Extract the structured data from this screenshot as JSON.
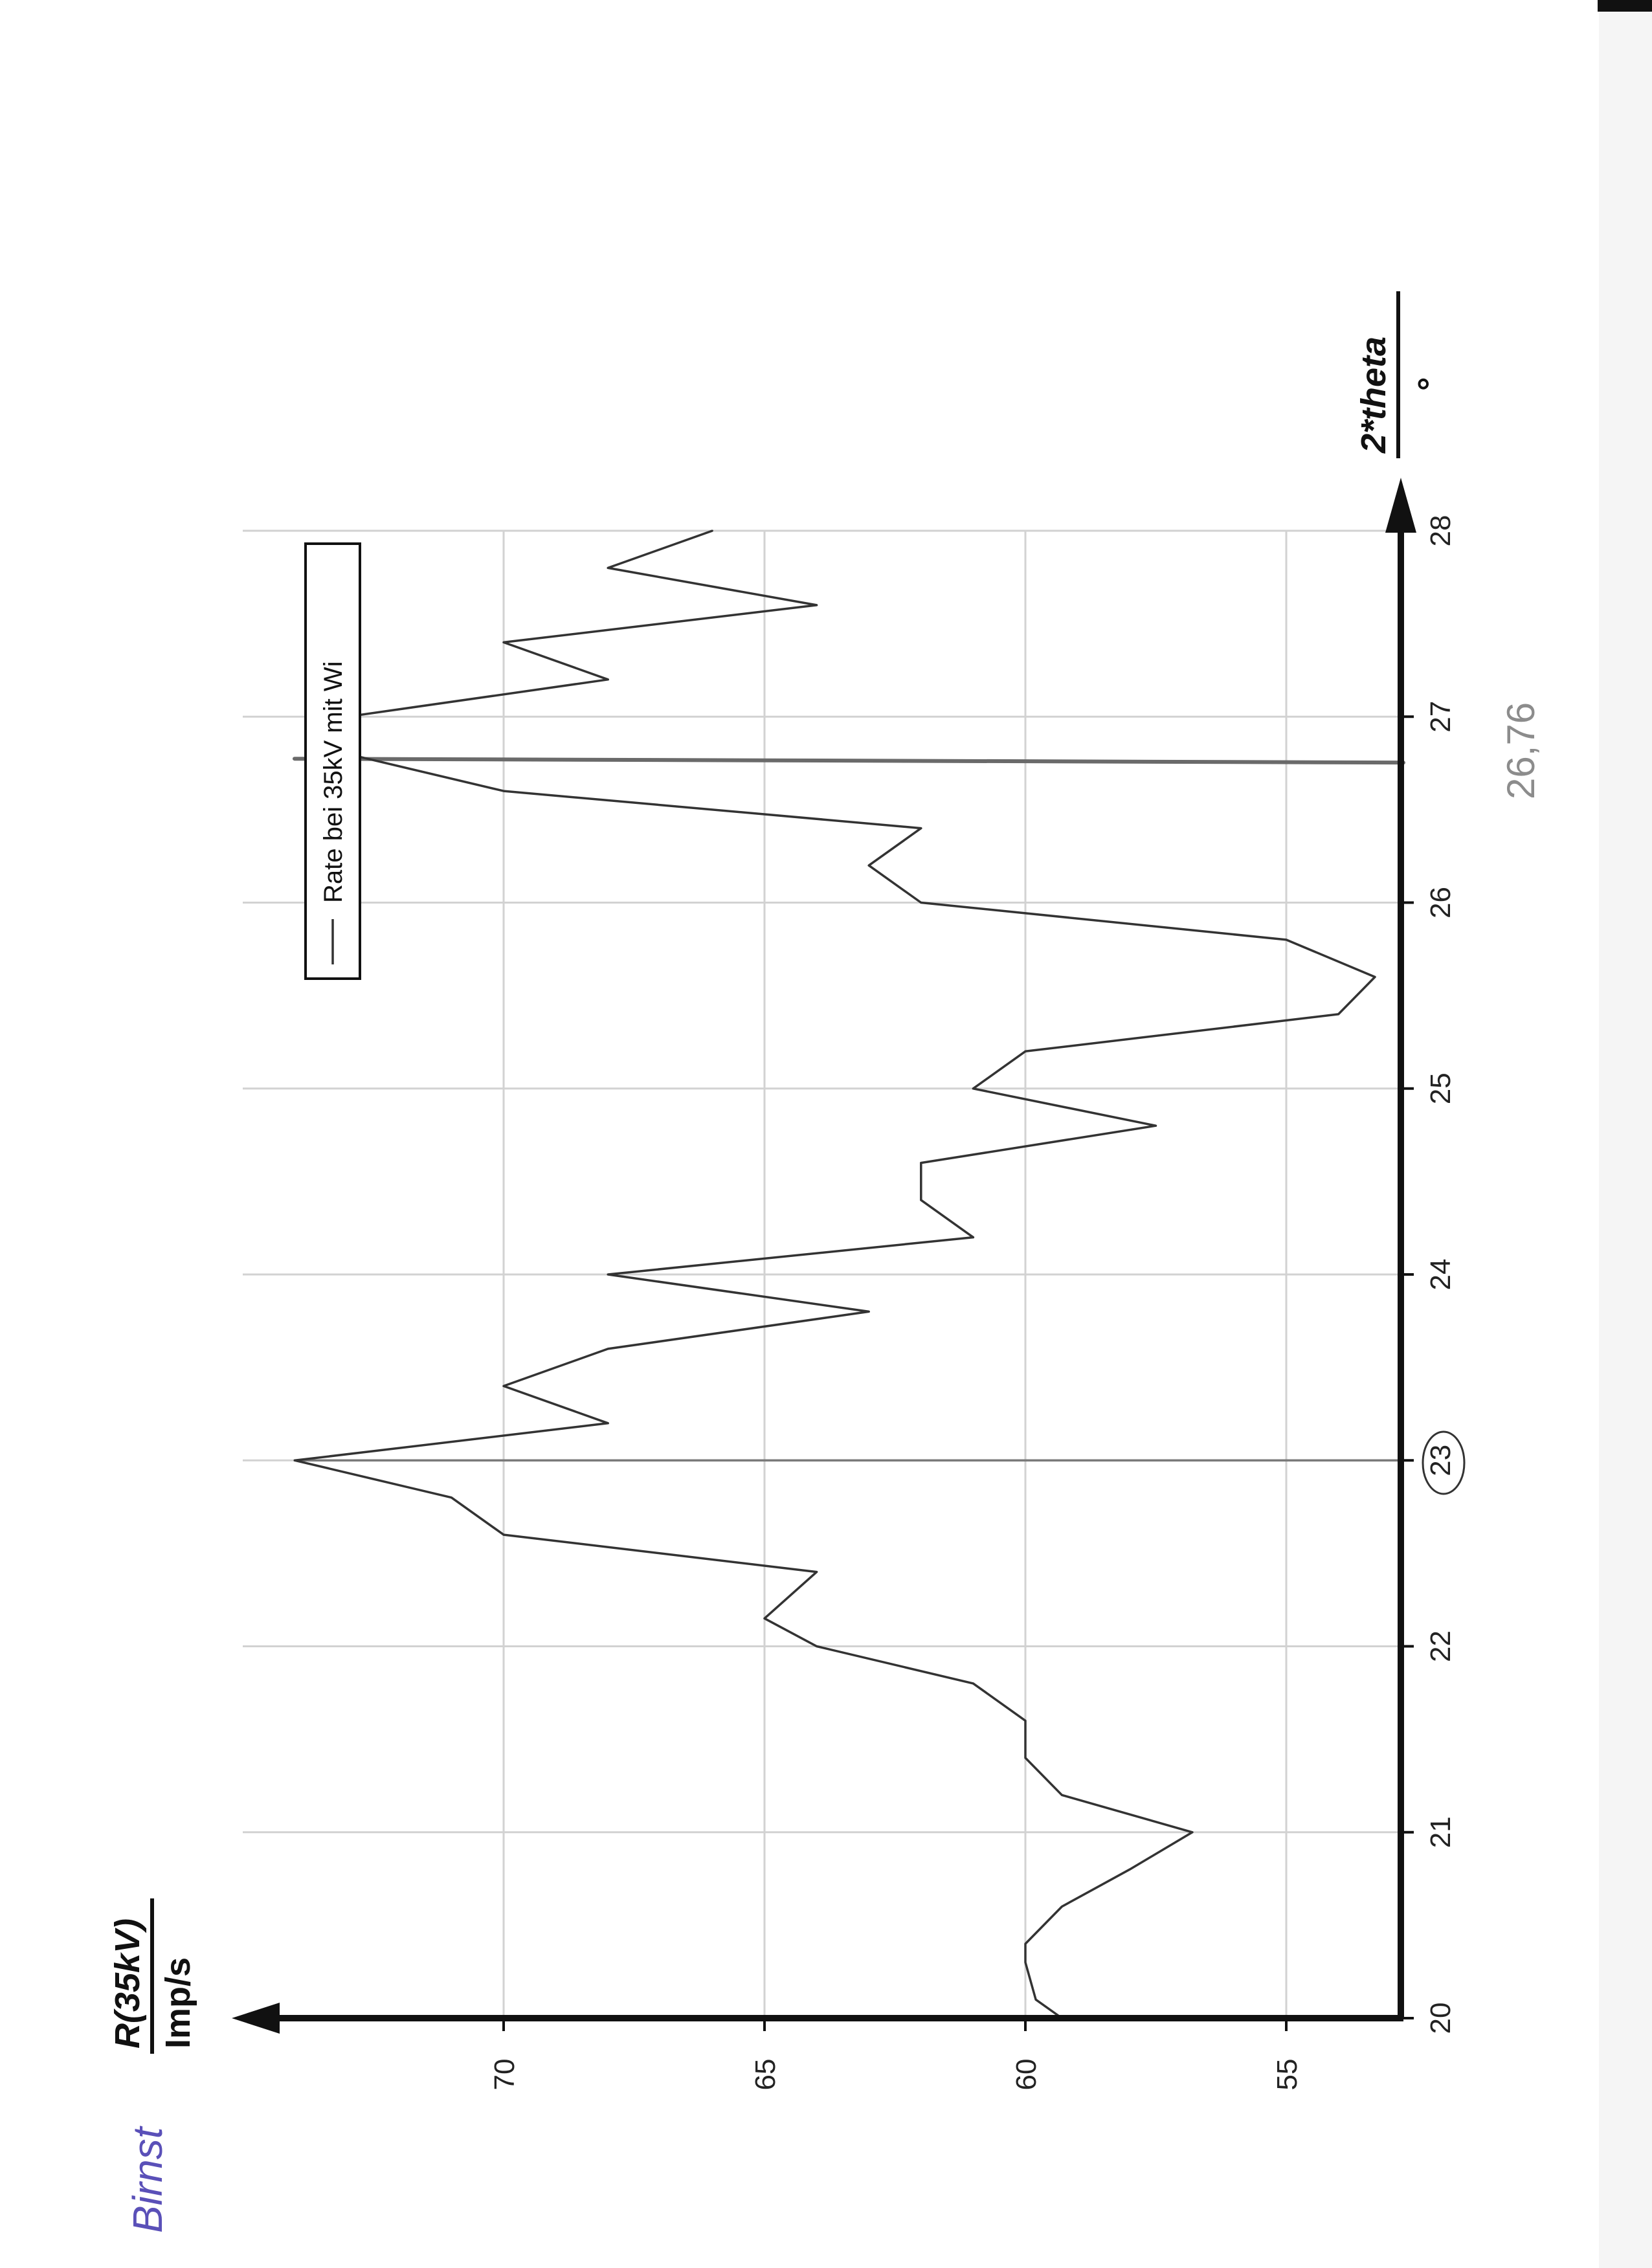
{
  "chart_data": {
    "type": "line",
    "x_axis": {
      "label": "2*theta",
      "unit": "°",
      "min": 20,
      "max": 28,
      "ticks": [
        20,
        21,
        22,
        23,
        24,
        25,
        26,
        27,
        28
      ]
    },
    "y_axis": {
      "label": "R(35kV)",
      "unit": "Imp/s",
      "min": 53,
      "max": 75,
      "ticks": [
        55,
        60,
        65,
        70
      ]
    },
    "grid": true,
    "legend": {
      "placement": "top-right",
      "entries": [
        "Rate bei 35kV mit Wi"
      ]
    },
    "series": [
      {
        "name": "Rate bei 35kV mit Wi",
        "x": [
          20.0,
          20.1,
          20.3,
          20.4,
          20.6,
          20.8,
          21.0,
          21.2,
          21.4,
          21.6,
          21.8,
          22.0,
          22.15,
          22.4,
          22.6,
          22.8,
          23.0,
          23.2,
          23.4,
          23.6,
          23.8,
          24.0,
          24.2,
          24.4,
          24.6,
          24.8,
          25.0,
          25.2,
          25.4,
          25.6,
          25.8,
          26.0,
          26.2,
          26.4,
          26.6,
          26.8,
          27.0,
          27.2,
          27.4,
          27.6,
          27.8,
          28.0
        ],
        "y": [
          59.3,
          59.8,
          60.0,
          60.0,
          59.3,
          58.0,
          56.8,
          59.3,
          60.0,
          60.0,
          61.0,
          64.0,
          65.0,
          64.0,
          70.0,
          71.0,
          74.0,
          68.0,
          70.0,
          68.0,
          63.0,
          68.0,
          61.0,
          62.0,
          62.0,
          57.5,
          61.0,
          60.0,
          54.0,
          53.3,
          55.0,
          62.0,
          63.0,
          62.0,
          70.0,
          73.0,
          73.0,
          68.0,
          70.0,
          64.0,
          68.0,
          66.0
        ]
      }
    ],
    "annotations": [
      {
        "text": "26,76",
        "x": 26.76
      },
      {
        "text": "23",
        "x": 23
      }
    ]
  },
  "handwriting": {
    "margin_note": "Birnst"
  }
}
